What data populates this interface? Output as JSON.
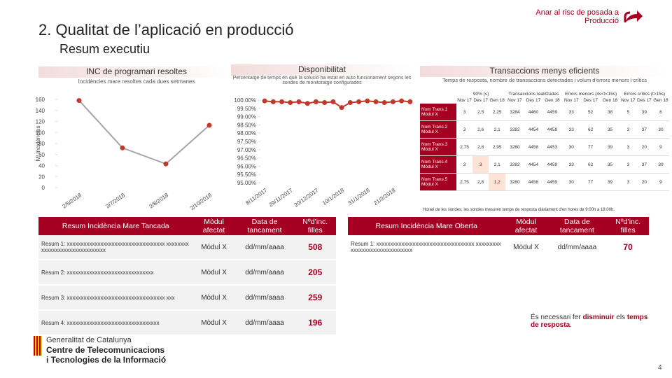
{
  "header": {
    "title": "2. Qualitat de l’aplicació en producció",
    "subtitle": "Resum executiu",
    "link": "Anar al risc de posada a Producció"
  },
  "chart_data": [
    {
      "type": "line",
      "title": "INC de programari resoltes",
      "subtitle": "Incidències mare resoltes cada dues setmanes",
      "y_label": "Nº Incidències",
      "categories": [
        "2/5/2018",
        "2/7/2018",
        "2/8/2018",
        "2/10/2018"
      ],
      "values": [
        158,
        72,
        43,
        113
      ],
      "ylim": [
        0,
        160
      ],
      "yticks": [
        0,
        20,
        40,
        60,
        80,
        100,
        120,
        140,
        160
      ],
      "line_color": "#a6a6a6",
      "marker_color": "#c0392b"
    },
    {
      "type": "line",
      "title": "Disponibilitat",
      "subtitle": "Percentatge de temps en què la solució ha estat en auto funcionament segons les sondes de monitoratge configurades",
      "categories": [
        "8/11/2017",
        null,
        null,
        "29/11/2017",
        null,
        null,
        "20/12/2017",
        null,
        null,
        "10/1/2018",
        null,
        null,
        "31/1/2018",
        null,
        null,
        "21/2/2018",
        null,
        null
      ],
      "values": [
        99.95,
        99.9,
        99.9,
        99.85,
        99.9,
        99.8,
        99.9,
        99.85,
        99.9,
        99.55,
        99.85,
        99.9,
        99.95,
        99.9,
        99.85,
        99.9,
        99.95,
        99.9
      ],
      "ylim": [
        95,
        100
      ],
      "yticks": [
        {
          "value": 95,
          "label": "95.00%"
        },
        {
          "value": 95.5,
          "label": "95.50%"
        },
        {
          "value": 96,
          "label": "96.00%"
        },
        {
          "value": 96.5,
          "label": "96.50%"
        },
        {
          "value": 97,
          "label": "97.00%"
        },
        {
          "value": 97.5,
          "label": "97.50%"
        },
        {
          "value": 98,
          "label": "98.00%"
        },
        {
          "value": 98.5,
          "label": "98.50%"
        },
        {
          "value": 99,
          "label": "99.00%"
        },
        {
          "value": 99.5,
          "label": "99.50%"
        },
        {
          "value": 100,
          "label": "100.00%"
        }
      ],
      "line_color": "#c0392b",
      "marker_color": "#c0392b"
    }
  ],
  "transactions": {
    "title": "Transaccions menys eficients",
    "subtitle": "Temps de resposta, nombre de transaccions detectades i volum d'errors menors i crítics",
    "groups": [
      "90% (s)",
      "Transaccions realitzades",
      "Errors menors (4s<t<15s)",
      "Errors crítics (t>15s)"
    ],
    "months": [
      "Nov 17",
      "Des 17",
      "Gen 18"
    ],
    "rows": [
      {
        "name": "Nom Trans.1 Mòdul X",
        "cells": [
          "3",
          "2,5",
          "2,25",
          "3284",
          "4460",
          "4459",
          "33",
          "52",
          "38",
          "5",
          "39",
          "6"
        ]
      },
      {
        "name": "Nom Trans.2 Mòdul X",
        "cells": [
          "3",
          "2,6",
          "2,1",
          "3282",
          "4454",
          "4459",
          "33",
          "62",
          "35",
          "3",
          "37",
          "30"
        ]
      },
      {
        "name": "Nom Trans.3 Mòdul X",
        "cells": [
          "2,75",
          "2,8",
          "2,95",
          "3280",
          "4458",
          "4453",
          "30",
          "77",
          "39",
          "3",
          "20",
          "9"
        ]
      },
      {
        "name": "Nom Trans.4 Mòdul X",
        "cells": [
          "3",
          "3",
          "2,1",
          "3282",
          "4454",
          "4459",
          "33",
          "62",
          "35",
          "3",
          "37",
          "30"
        ]
      },
      {
        "name": "Nom Trans.5 Mòdul X",
        "cells": [
          "2,75",
          "2,8",
          "1,2",
          "3280",
          "4458",
          "4459",
          "30",
          "77",
          "39",
          "3",
          "20",
          "9"
        ]
      }
    ],
    "alert_cells": [
      [
        3,
        1
      ],
      [
        4,
        2
      ]
    ],
    "footnote": "Horari de les sondes: les sondes mesuren temps de resposta diàriament d'en hores de 9:00h a 18:00h."
  },
  "closed": {
    "headers": [
      "Resum Incidència Mare Tancada",
      "Mòdul afectat",
      "Data de tancament",
      "Nºd’inc. filles"
    ],
    "rows": [
      [
        "Resum 1: xxxxxxxxxxxxxxxxxxxxxxxxxxxxxxxxxxx xxxxxxxxxxxxxxxxxxxxxxxxxxxxxxx",
        "Mòdul X",
        "dd/mm/aaaa",
        "508"
      ],
      [
        "Resum 2: xxxxxxxxxxxxxxxxxxxxxxxxxxxxxxx",
        "Mòdul X",
        "dd/mm/aaaa",
        "205"
      ],
      [
        "Resum 3: xxxxxxxxxxxxxxxxxxxxxxxxxxxxxxxxxxx xxx",
        "Mòdul X",
        "dd/mm/aaaa",
        "259"
      ],
      [
        "Resum 4: xxxxxxxxxxxxxxxxxxxxxxxxxxxxxxxxx",
        "Mòdul X",
        "dd/mm/aaaa",
        "196"
      ]
    ]
  },
  "open": {
    "headers": [
      "Resum Incidència Mare Oberta",
      "Mòdul afectat",
      "Data de tancament",
      "Nºd’inc. filles"
    ],
    "rows": [
      [
        "Resum 1: xxxxxxxxxxxxxxxxxxxxxxxxxxxxxxxxxxx xxxxxxxxxxxxxxxxxxxxxxxxxxxxxxx",
        "Mòdul X",
        "dd/mm/aaaa",
        "70"
      ]
    ]
  },
  "note": {
    "lead": "És necessari fer ",
    "verb": "disminuir",
    "mid": " els ",
    "object": "temps de resposta",
    "end": "."
  },
  "logo": [
    "Generalitat de Catalunya",
    "Centre de Telecomunicacions",
    "i Tecnologies de la Informació"
  ],
  "page": "4"
}
